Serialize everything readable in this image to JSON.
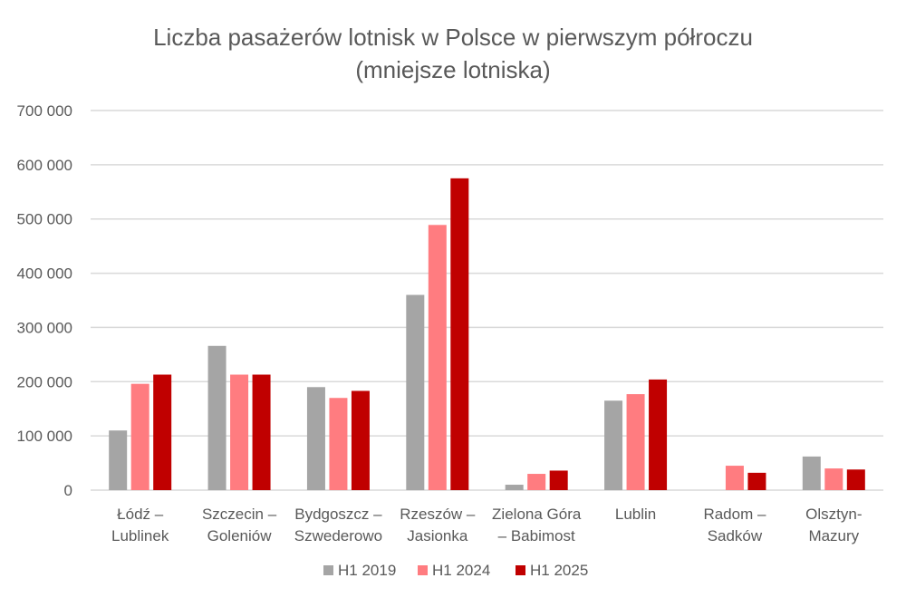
{
  "chart_data": {
    "type": "bar",
    "title": [
      "Liczba pasażerów lotnisk w Polsce w pierwszym półroczu",
      "(mniejsze lotniska)"
    ],
    "categories": [
      [
        "Łódź –",
        "Lublinek"
      ],
      [
        "Szczecin –",
        "Goleniów"
      ],
      [
        "Bydgoszcz –",
        "Szwederowo"
      ],
      [
        "Rzeszów –",
        "Jasionka"
      ],
      [
        "Zielona Góra",
        "– Babimost"
      ],
      [
        "Lublin"
      ],
      [
        "Radom –",
        "Sadków"
      ],
      [
        "Olsztyn-",
        "Mazury"
      ]
    ],
    "series": [
      {
        "name": "H1 2019",
        "color": "#a5a5a5",
        "values": [
          110000,
          266000,
          190000,
          360000,
          10000,
          165000,
          0,
          62000
        ]
      },
      {
        "name": "H1 2024",
        "color": "#ff7c80",
        "values": [
          196000,
          213000,
          170000,
          489000,
          30000,
          177000,
          45000,
          40000
        ]
      },
      {
        "name": "H1 2025",
        "color": "#c00000",
        "values": [
          213000,
          213000,
          183000,
          575000,
          36000,
          204000,
          32000,
          38000
        ]
      }
    ],
    "yticks": [
      "0",
      "100 000",
      "200 000",
      "300 000",
      "400 000",
      "500 000",
      "600 000",
      "700 000"
    ],
    "ylim": [
      0,
      700000
    ],
    "grid": true,
    "legend_position": "bottom"
  }
}
